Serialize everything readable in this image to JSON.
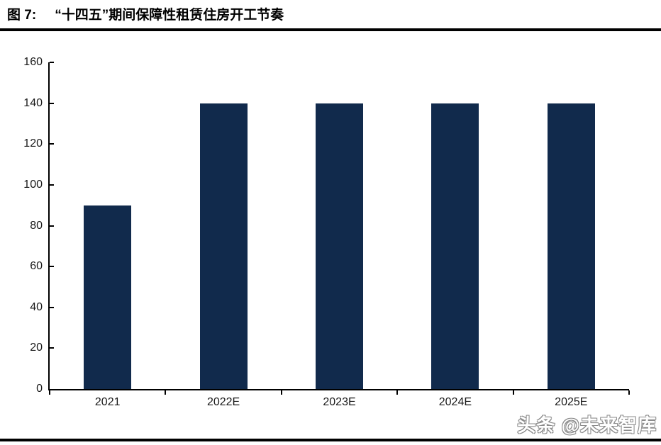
{
  "header": {
    "figure_label": "图 7:",
    "figure_title": "“十四五”期间保障性租赁住房开工节奏"
  },
  "watermark": "头条 @未来智库",
  "colors": {
    "bar": "#112A4C",
    "axis": "#000000",
    "rule": "#000000",
    "tick_label": "#1a1a1a",
    "watermark_outline": "#8a8a8a"
  },
  "chart_data": {
    "type": "bar",
    "title": "“十四五”期间保障性租赁住房开工节奏",
    "categories": [
      "2021",
      "2022E",
      "2023E",
      "2024E",
      "2025E"
    ],
    "values": [
      90,
      140,
      140,
      140,
      140
    ],
    "xlabel": "",
    "ylabel": "",
    "ylim": [
      0,
      160
    ],
    "ytick_step": 20,
    "ytick_labels": [
      "0",
      "20",
      "40",
      "60",
      "80",
      "100",
      "120",
      "140",
      "160"
    ],
    "grid": false,
    "legend_position": "none",
    "bar_color": "#112A4C"
  }
}
